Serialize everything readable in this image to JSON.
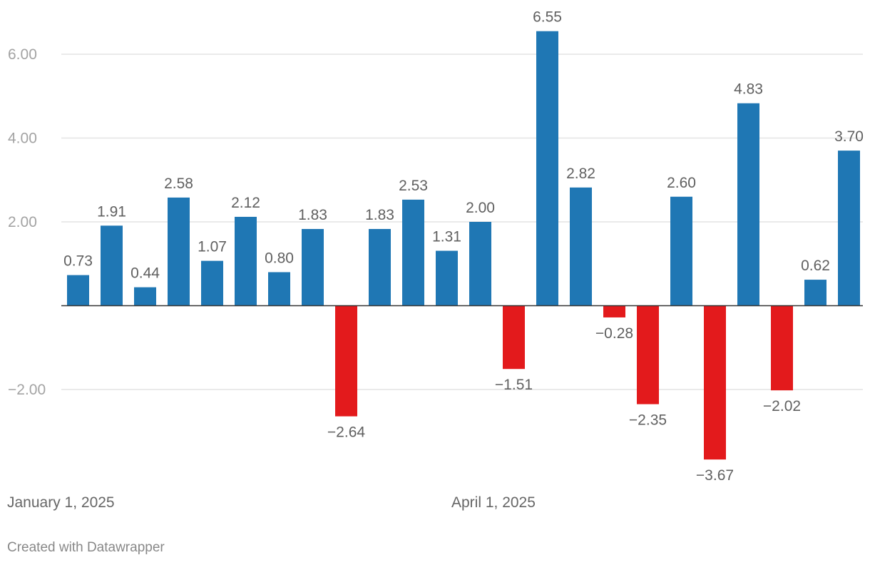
{
  "chart_data": {
    "type": "bar",
    "title": "",
    "xlabel": "",
    "ylabel": "",
    "ylim": [
      -4.4,
      7.2
    ],
    "grid": true,
    "positive_color": "#1f77b4",
    "negative_color": "#e31a1c",
    "y_ticks": [
      {
        "value": 6,
        "label": "6.00"
      },
      {
        "value": 4,
        "label": "4.00"
      },
      {
        "value": 2,
        "label": "2.00"
      },
      {
        "value": -2,
        "label": "−2.00"
      }
    ],
    "x_tick_labels": [
      {
        "index": 0,
        "label": "January 1, 2025"
      },
      {
        "index": 13,
        "label": "April 1, 2025"
      }
    ],
    "values": [
      0.73,
      1.91,
      0.44,
      2.58,
      1.07,
      2.12,
      0.8,
      1.83,
      -2.64,
      1.83,
      2.53,
      1.31,
      2.0,
      -1.51,
      6.55,
      2.82,
      -0.28,
      -2.35,
      2.6,
      -3.67,
      4.83,
      -2.02,
      0.62,
      3.7
    ],
    "value_labels": [
      "0.73",
      "1.91",
      "0.44",
      "2.58",
      "1.07",
      "2.12",
      "0.80",
      "1.83",
      "−2.64",
      "1.83",
      "2.53",
      "1.31",
      "2.00",
      "−1.51",
      "6.55",
      "2.82",
      "−0.28",
      "−2.35",
      "2.60",
      "−3.67",
      "4.83",
      "−2.02",
      "0.62",
      "3.70"
    ]
  },
  "footer": {
    "credit": "Created with Datawrapper"
  }
}
